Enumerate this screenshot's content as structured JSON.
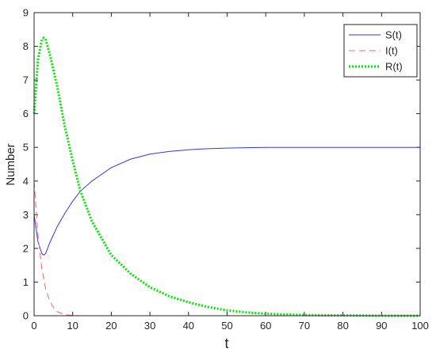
{
  "chart_data": {
    "type": "line",
    "xlabel": "t",
    "ylabel": "Number",
    "x": [
      0,
      1,
      2,
      2.5,
      3,
      4,
      5,
      6,
      8,
      10,
      12,
      15,
      20,
      25,
      30,
      35,
      40,
      45,
      50,
      55,
      60,
      70,
      80,
      90,
      100
    ],
    "series": [
      {
        "name": "S(t)",
        "color": "#3333ff",
        "line_style": "solid",
        "line_width": 1,
        "values": [
          3,
          2.2,
          1.85,
          1.8,
          1.85,
          2.15,
          2.4,
          2.65,
          3.05,
          3.4,
          3.7,
          4.0,
          4.4,
          4.65,
          4.8,
          4.88,
          4.93,
          4.96,
          4.98,
          4.99,
          5,
          5,
          5,
          5,
          5
        ]
      },
      {
        "name": "I(t)",
        "color": "#ff6666",
        "line_style": "dashed",
        "line_width": 1,
        "values": [
          4,
          2.4,
          1.4,
          1.1,
          0.8,
          0.45,
          0.25,
          0.12,
          0.03,
          0.01,
          0,
          0,
          0,
          0,
          0,
          0,
          0,
          0,
          0,
          0,
          0,
          0,
          0,
          0,
          0
        ]
      },
      {
        "name": "R(t)",
        "color": "#00e600",
        "line_style": "dotted",
        "line_width": 3,
        "values": [
          6,
          7.6,
          8.2,
          8.25,
          8.2,
          7.8,
          7.3,
          6.8,
          5.6,
          4.6,
          3.7,
          2.8,
          1.8,
          1.25,
          0.85,
          0.58,
          0.4,
          0.26,
          0.16,
          0.1,
          0.06,
          0.02,
          0.01,
          0,
          0
        ]
      }
    ],
    "xlim": [
      0,
      100
    ],
    "xticks": [
      0,
      10,
      20,
      30,
      40,
      50,
      60,
      70,
      80,
      90,
      100
    ],
    "ylim": [
      0,
      9
    ],
    "yticks": [
      0,
      1,
      2,
      3,
      4,
      5,
      6,
      7,
      8,
      9
    ],
    "grid": false,
    "legend": "top-right"
  }
}
